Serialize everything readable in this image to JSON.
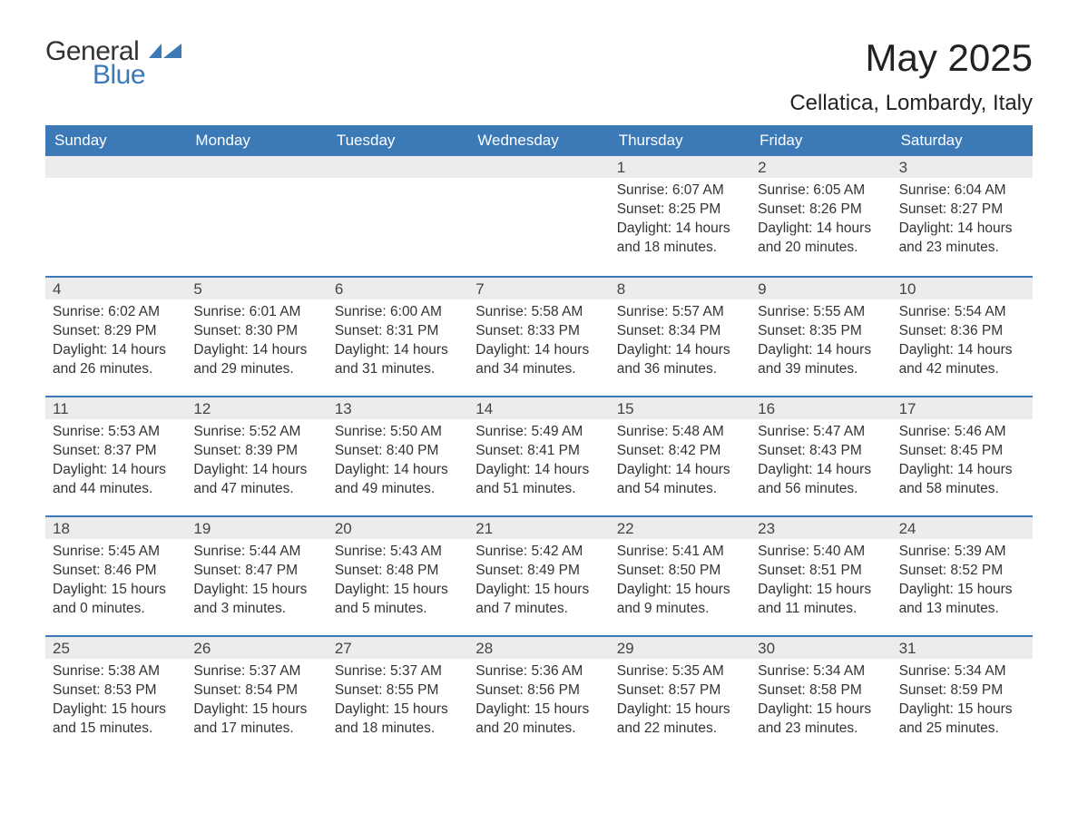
{
  "brand": {
    "text1": "General",
    "text2": "Blue",
    "accent_color": "#3b79b7"
  },
  "title": "May 2025",
  "location": "Cellatica, Lombardy, Italy",
  "colors": {
    "header_bg": "#3b79b7",
    "header_text": "#ffffff",
    "daynum_bg": "#ececec",
    "border": "#3b79b7",
    "text": "#333333",
    "background": "#ffffff"
  },
  "typography": {
    "title_fontsize": 42,
    "location_fontsize": 24,
    "dow_fontsize": 17,
    "body_fontsize": 15.5
  },
  "days_of_week": [
    "Sunday",
    "Monday",
    "Tuesday",
    "Wednesday",
    "Thursday",
    "Friday",
    "Saturday"
  ],
  "weeks": [
    [
      null,
      null,
      null,
      null,
      {
        "n": "1",
        "sunrise": "Sunrise: 6:07 AM",
        "sunset": "Sunset: 8:25 PM",
        "d1": "Daylight: 14 hours",
        "d2": "and 18 minutes."
      },
      {
        "n": "2",
        "sunrise": "Sunrise: 6:05 AM",
        "sunset": "Sunset: 8:26 PM",
        "d1": "Daylight: 14 hours",
        "d2": "and 20 minutes."
      },
      {
        "n": "3",
        "sunrise": "Sunrise: 6:04 AM",
        "sunset": "Sunset: 8:27 PM",
        "d1": "Daylight: 14 hours",
        "d2": "and 23 minutes."
      }
    ],
    [
      {
        "n": "4",
        "sunrise": "Sunrise: 6:02 AM",
        "sunset": "Sunset: 8:29 PM",
        "d1": "Daylight: 14 hours",
        "d2": "and 26 minutes."
      },
      {
        "n": "5",
        "sunrise": "Sunrise: 6:01 AM",
        "sunset": "Sunset: 8:30 PM",
        "d1": "Daylight: 14 hours",
        "d2": "and 29 minutes."
      },
      {
        "n": "6",
        "sunrise": "Sunrise: 6:00 AM",
        "sunset": "Sunset: 8:31 PM",
        "d1": "Daylight: 14 hours",
        "d2": "and 31 minutes."
      },
      {
        "n": "7",
        "sunrise": "Sunrise: 5:58 AM",
        "sunset": "Sunset: 8:33 PM",
        "d1": "Daylight: 14 hours",
        "d2": "and 34 minutes."
      },
      {
        "n": "8",
        "sunrise": "Sunrise: 5:57 AM",
        "sunset": "Sunset: 8:34 PM",
        "d1": "Daylight: 14 hours",
        "d2": "and 36 minutes."
      },
      {
        "n": "9",
        "sunrise": "Sunrise: 5:55 AM",
        "sunset": "Sunset: 8:35 PM",
        "d1": "Daylight: 14 hours",
        "d2": "and 39 minutes."
      },
      {
        "n": "10",
        "sunrise": "Sunrise: 5:54 AM",
        "sunset": "Sunset: 8:36 PM",
        "d1": "Daylight: 14 hours",
        "d2": "and 42 minutes."
      }
    ],
    [
      {
        "n": "11",
        "sunrise": "Sunrise: 5:53 AM",
        "sunset": "Sunset: 8:37 PM",
        "d1": "Daylight: 14 hours",
        "d2": "and 44 minutes."
      },
      {
        "n": "12",
        "sunrise": "Sunrise: 5:52 AM",
        "sunset": "Sunset: 8:39 PM",
        "d1": "Daylight: 14 hours",
        "d2": "and 47 minutes."
      },
      {
        "n": "13",
        "sunrise": "Sunrise: 5:50 AM",
        "sunset": "Sunset: 8:40 PM",
        "d1": "Daylight: 14 hours",
        "d2": "and 49 minutes."
      },
      {
        "n": "14",
        "sunrise": "Sunrise: 5:49 AM",
        "sunset": "Sunset: 8:41 PM",
        "d1": "Daylight: 14 hours",
        "d2": "and 51 minutes."
      },
      {
        "n": "15",
        "sunrise": "Sunrise: 5:48 AM",
        "sunset": "Sunset: 8:42 PM",
        "d1": "Daylight: 14 hours",
        "d2": "and 54 minutes."
      },
      {
        "n": "16",
        "sunrise": "Sunrise: 5:47 AM",
        "sunset": "Sunset: 8:43 PM",
        "d1": "Daylight: 14 hours",
        "d2": "and 56 minutes."
      },
      {
        "n": "17",
        "sunrise": "Sunrise: 5:46 AM",
        "sunset": "Sunset: 8:45 PM",
        "d1": "Daylight: 14 hours",
        "d2": "and 58 minutes."
      }
    ],
    [
      {
        "n": "18",
        "sunrise": "Sunrise: 5:45 AM",
        "sunset": "Sunset: 8:46 PM",
        "d1": "Daylight: 15 hours",
        "d2": "and 0 minutes."
      },
      {
        "n": "19",
        "sunrise": "Sunrise: 5:44 AM",
        "sunset": "Sunset: 8:47 PM",
        "d1": "Daylight: 15 hours",
        "d2": "and 3 minutes."
      },
      {
        "n": "20",
        "sunrise": "Sunrise: 5:43 AM",
        "sunset": "Sunset: 8:48 PM",
        "d1": "Daylight: 15 hours",
        "d2": "and 5 minutes."
      },
      {
        "n": "21",
        "sunrise": "Sunrise: 5:42 AM",
        "sunset": "Sunset: 8:49 PM",
        "d1": "Daylight: 15 hours",
        "d2": "and 7 minutes."
      },
      {
        "n": "22",
        "sunrise": "Sunrise: 5:41 AM",
        "sunset": "Sunset: 8:50 PM",
        "d1": "Daylight: 15 hours",
        "d2": "and 9 minutes."
      },
      {
        "n": "23",
        "sunrise": "Sunrise: 5:40 AM",
        "sunset": "Sunset: 8:51 PM",
        "d1": "Daylight: 15 hours",
        "d2": "and 11 minutes."
      },
      {
        "n": "24",
        "sunrise": "Sunrise: 5:39 AM",
        "sunset": "Sunset: 8:52 PM",
        "d1": "Daylight: 15 hours",
        "d2": "and 13 minutes."
      }
    ],
    [
      {
        "n": "25",
        "sunrise": "Sunrise: 5:38 AM",
        "sunset": "Sunset: 8:53 PM",
        "d1": "Daylight: 15 hours",
        "d2": "and 15 minutes."
      },
      {
        "n": "26",
        "sunrise": "Sunrise: 5:37 AM",
        "sunset": "Sunset: 8:54 PM",
        "d1": "Daylight: 15 hours",
        "d2": "and 17 minutes."
      },
      {
        "n": "27",
        "sunrise": "Sunrise: 5:37 AM",
        "sunset": "Sunset: 8:55 PM",
        "d1": "Daylight: 15 hours",
        "d2": "and 18 minutes."
      },
      {
        "n": "28",
        "sunrise": "Sunrise: 5:36 AM",
        "sunset": "Sunset: 8:56 PM",
        "d1": "Daylight: 15 hours",
        "d2": "and 20 minutes."
      },
      {
        "n": "29",
        "sunrise": "Sunrise: 5:35 AM",
        "sunset": "Sunset: 8:57 PM",
        "d1": "Daylight: 15 hours",
        "d2": "and 22 minutes."
      },
      {
        "n": "30",
        "sunrise": "Sunrise: 5:34 AM",
        "sunset": "Sunset: 8:58 PM",
        "d1": "Daylight: 15 hours",
        "d2": "and 23 minutes."
      },
      {
        "n": "31",
        "sunrise": "Sunrise: 5:34 AM",
        "sunset": "Sunset: 8:59 PM",
        "d1": "Daylight: 15 hours",
        "d2": "and 25 minutes."
      }
    ]
  ]
}
